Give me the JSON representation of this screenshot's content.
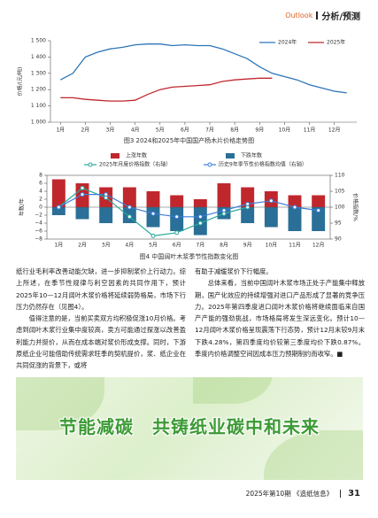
{
  "header": {
    "section_en": "Outlook",
    "section": "分析/预测"
  },
  "chart_data": [
    {
      "type": "line",
      "caption": "图3  2024和2025年中国国产杨木片价格走势图",
      "y_label": "价格/(元/吨)",
      "x": [
        1,
        1.5,
        2,
        2.5,
        3,
        3.5,
        4,
        4.5,
        5,
        5.5,
        6,
        6.5,
        7,
        7.5,
        8,
        8.5,
        9,
        9.5,
        10,
        10.5,
        11,
        11.5,
        12,
        12.5
      ],
      "xlim": [
        0.6,
        12.9
      ],
      "xticks": [
        {
          "value": 1,
          "label": "1月"
        },
        {
          "value": 2,
          "label": "2月"
        },
        {
          "value": 3,
          "label": "3月"
        },
        {
          "value": 4,
          "label": "4月"
        },
        {
          "value": 5,
          "label": "5月"
        },
        {
          "value": 6,
          "label": "6月"
        },
        {
          "value": 7,
          "label": "7月"
        },
        {
          "value": 8,
          "label": "8月"
        },
        {
          "value": 9,
          "label": "9月"
        },
        {
          "value": 10,
          "label": "10月"
        },
        {
          "value": 11,
          "label": "11月"
        },
        {
          "value": 12,
          "label": "12月"
        }
      ],
      "ylim": [
        1000,
        1500
      ],
      "yticks": [
        {
          "value": 1000,
          "label": "1 000"
        },
        {
          "value": 1100,
          "label": "1 100"
        },
        {
          "value": 1200,
          "label": "1 200"
        },
        {
          "value": 1300,
          "label": "1 300"
        },
        {
          "value": 1400,
          "label": "1 400"
        },
        {
          "value": 1500,
          "label": "1 500"
        }
      ],
      "series": [
        {
          "name": "2024年",
          "color": "#2e75b6",
          "values": [
            1260,
            1300,
            1400,
            1430,
            1450,
            1460,
            1475,
            1480,
            1480,
            1470,
            1475,
            1470,
            1470,
            1450,
            1420,
            1390,
            1340,
            1300,
            1280,
            1260,
            1230,
            1210,
            1190,
            1180
          ]
        },
        {
          "name": "2025年",
          "color": "#c0272d",
          "values": [
            1150,
            1150,
            1140,
            1135,
            1130,
            1130,
            1135,
            1170,
            1200,
            1215,
            1220,
            1225,
            1230,
            1250,
            1260,
            1265,
            1270,
            1270,
            null,
            null,
            null,
            null,
            null,
            null
          ]
        }
      ],
      "legend": "top-right"
    },
    {
      "type": "bar-line",
      "caption": "图4  中国阔叶木浆季节性指数变化图",
      "y_label": "年数/年",
      "y2_label": "价格指数/%",
      "categories": [
        "1月",
        "2月",
        "3月",
        "4月",
        "5月",
        "6月",
        "7月",
        "8月",
        "9月",
        "10月",
        "11月",
        "12月"
      ],
      "ylim": [
        -8,
        8
      ],
      "yticks": [
        {
          "value": -8,
          "label": "−8"
        },
        {
          "value": -6,
          "label": "−6"
        },
        {
          "value": -4,
          "label": "−4"
        },
        {
          "value": -2,
          "label": "−2"
        },
        0,
        2,
        4,
        6,
        8
      ],
      "y2lim": [
        90,
        110
      ],
      "y2ticks": [
        90,
        95,
        100,
        105,
        110
      ],
      "series": [
        {
          "name": "上涨年数",
          "type": "bar",
          "color": "#c0272d",
          "values": [
            7,
            6,
            5,
            5,
            4,
            3,
            2,
            6,
            5,
            4,
            3,
            3
          ]
        },
        {
          "name": "下跌年数",
          "type": "bar",
          "color": "#2a6f97",
          "values": [
            -2,
            -3,
            -4,
            -4,
            -5,
            -6,
            -7,
            -3,
            -4,
            -5,
            -6,
            -6
          ]
        },
        {
          "name": "2025年月度价格指数（右轴）",
          "type": "line",
          "axis": "y2",
          "color": "#2aa89a",
          "values": [
            100,
            106,
            103,
            97,
            91,
            92,
            95,
            98,
            100,
            null,
            null,
            null
          ]
        },
        {
          "name": "历史9年季节性价格指数均值（右轴）",
          "type": "line",
          "axis": "y2",
          "color": "#3b7dd8",
          "values": [
            100,
            104,
            104,
            100,
            98,
            97,
            97,
            99,
            101,
            102,
            100,
            99
          ]
        }
      ],
      "legend": "top"
    }
  ],
  "body": {
    "left": [
      "纸行业毛利率改善动能欠缺，进一步抑制浆价上行动力。综上所述，在季节性规律与利空因素的共同作用下，预计2025年10—12月阔叶木浆价格将延续弱势格局，市场下行压力仍然存在（见图4）。",
      "值得注意的是，当前买卖双方均积极促涨10月价格。考虑到阔叶木浆行业集中度较高，卖方可能通过探涨以改善盈利能力并挺价，从而在成本端对浆价形成支撑。同时，下游原纸企业可能借助传统需求旺季的契机提价，浆、纸企业在共同促涨的背景下，或将"
    ],
    "right": [
      "有助于减缓浆价下行幅度。",
      "总体来看，当前中国阔叶木浆市场正处于产能集中释放期，国产化效应的持续增强对进口产品形成了显著的竞争压力。2025年第四季度进口阔叶木浆价格将继续面临来自国产产能的强劲挑战，市场格局将发生深远变化。预计10—12月阔叶木浆价格呈现震荡下行态势，预计12月末较9月末下跌4.28%，第四季度均价较第三季度均价下跌0.87%。季度内价格调整空间因成本压力预期制约而收窄。■"
    ]
  },
  "banner": {
    "text": "节能减碳　共铸纸业碳中和未来"
  },
  "footer": {
    "issue": "2025年第10期 《造纸信息》",
    "page": "31"
  }
}
